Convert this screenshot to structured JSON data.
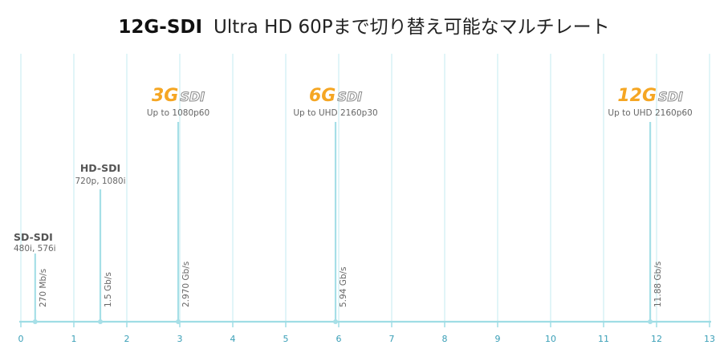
{
  "title": {
    "bold": "12G-SDI",
    "rest": "Ultra HD 60Pまで切り替え可能なマルチレート"
  },
  "colors": {
    "grid": "#cdeef2",
    "axis": "#9fdde5",
    "stem": "#a6dfe7",
    "tick_label": "#3a9fb7",
    "label_dark": "#555555",
    "label_mid": "#666666",
    "logo_orange": "#f5a623",
    "logo_gray": "#8a8a8a"
  },
  "chart_data": {
    "type": "lollipop",
    "x_ticks": [
      0,
      1,
      2,
      3,
      4,
      5,
      6,
      7,
      8,
      9,
      10,
      11,
      12,
      13
    ],
    "xlim": [
      0,
      13
    ],
    "xlabel": "",
    "ylabel": "",
    "grid": true,
    "points": [
      {
        "x": 0.27,
        "value_label": "270 Mb/s",
        "name": "SD-SDI",
        "logo_prefix": "",
        "logo_suffix": "",
        "caption": "480i, 576i"
      },
      {
        "x": 1.5,
        "value_label": "1.5 Gb/s",
        "name": "HD-SDI",
        "logo_prefix": "",
        "logo_suffix": "",
        "caption": "720p, 1080i"
      },
      {
        "x": 2.97,
        "value_label": "2.970 Gb/s",
        "name": "",
        "logo_prefix": "3G",
        "logo_suffix": "SDI",
        "caption": "Up to 1080p60"
      },
      {
        "x": 5.94,
        "value_label": "5.94 Gb/s",
        "name": "",
        "logo_prefix": "6G",
        "logo_suffix": "SDI",
        "caption": "Up to UHD 2160p30"
      },
      {
        "x": 11.88,
        "value_label": "11.88 Gb/s",
        "name": "",
        "logo_prefix": "12G",
        "logo_suffix": "SDI",
        "caption": "Up to UHD 2160p60"
      }
    ]
  }
}
